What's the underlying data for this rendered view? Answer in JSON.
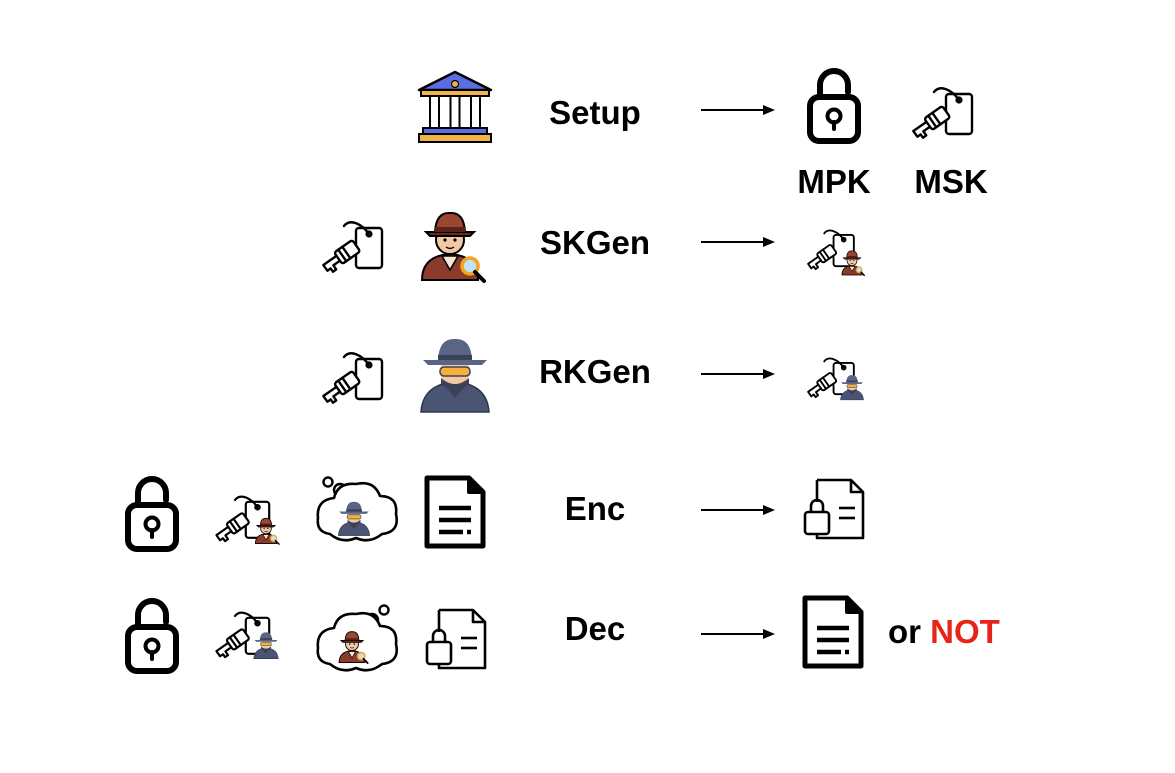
{
  "rows": [
    {
      "algorithm": "Setup",
      "outputs": [
        "MPK",
        "MSK"
      ]
    },
    {
      "algorithm": "SKGen"
    },
    {
      "algorithm": "RKGen"
    },
    {
      "algorithm": "Enc"
    },
    {
      "algorithm": "Dec",
      "suffix": "or",
      "suffix_highlight": "NOT"
    }
  ],
  "colors": {
    "not_text": "#e8231a",
    "bank_roof": "#5b6ee1",
    "bank_gold": "#f2b44a",
    "detective_coat": "#8b3a2b",
    "detective_skin": "#f3c9a3",
    "spy_body": "#4a5573",
    "spy_glasses": "#f6b13d"
  },
  "icons": [
    "bank-icon",
    "lock-icon",
    "key-tag-icon",
    "detective-icon",
    "spy-icon",
    "thought-cloud-icon",
    "document-icon",
    "locked-document-icon",
    "arrow-icon"
  ]
}
